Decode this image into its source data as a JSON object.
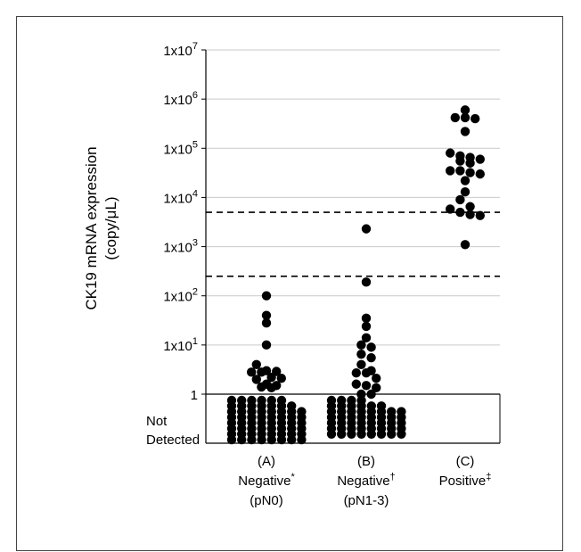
{
  "chart_data": {
    "type": "scatter",
    "title": "",
    "ylabel_line1": "CK19 mRNA expression",
    "ylabel_line2": "(copy/μL)",
    "y_scale": "log",
    "ylim": [
      1,
      10000000
    ],
    "below_axis_label_line1": "Not",
    "below_axis_label_line2": "Detected",
    "y_ticks": [
      {
        "value": 1,
        "label": "1"
      },
      {
        "value": 10,
        "base": "1x10",
        "exp": "1"
      },
      {
        "value": 100,
        "base": "1x10",
        "exp": "2"
      },
      {
        "value": 1000,
        "base": "1x10",
        "exp": "3"
      },
      {
        "value": 10000,
        "base": "1x10",
        "exp": "4"
      },
      {
        "value": 100000,
        "base": "1x10",
        "exp": "5"
      },
      {
        "value": 1000000,
        "base": "1x10",
        "exp": "6"
      },
      {
        "value": 10000000,
        "base": "1x10",
        "exp": "7"
      }
    ],
    "grid": true,
    "cutoff_lines": [
      250,
      5000
    ],
    "categories": [
      {
        "letter": "(A)",
        "name": "Negative",
        "mark": "*",
        "sub": "(pN0)"
      },
      {
        "letter": "(B)",
        "name": "Negative",
        "mark": "†",
        "sub": "(pN1-3)"
      },
      {
        "letter": "(C)",
        "name": "Positive",
        "mark": "‡",
        "sub": ""
      }
    ],
    "series": [
      {
        "detected_values": [
          100,
          40,
          28,
          10,
          4,
          3,
          2.9,
          2.8,
          2.8,
          2.2,
          2.1,
          2.0,
          1.6,
          1.5,
          1.4,
          1.35
        ],
        "not_detected_rows": [
          6,
          7,
          8,
          8,
          8,
          8,
          8,
          8
        ]
      },
      {
        "detected_values": [
          2300,
          190,
          35,
          24,
          14,
          10,
          9,
          6.5,
          5.5,
          4,
          3,
          2.7,
          2.7,
          2.1,
          1.6,
          1.5,
          1.35,
          1.0,
          1.0
        ],
        "not_detected_rows": [
          4,
          6,
          8,
          8,
          8,
          8,
          8
        ]
      },
      {
        "detected_values": [
          600000,
          420000,
          420000,
          400000,
          220000,
          80000,
          70000,
          65000,
          60000,
          55000,
          50000,
          35000,
          35000,
          32000,
          30000,
          22000,
          13000,
          9000,
          6500,
          5800,
          5000,
          4500,
          4300,
          1100
        ],
        "not_detected_rows": []
      }
    ]
  }
}
